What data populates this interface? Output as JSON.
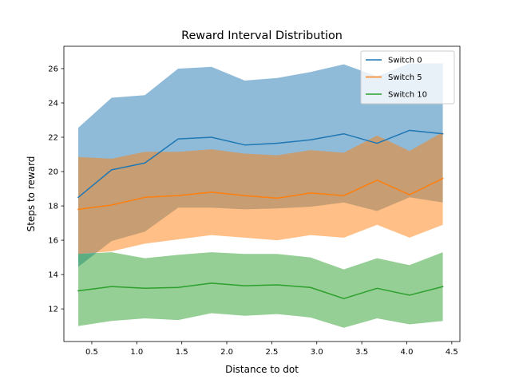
{
  "chart_data": {
    "type": "line",
    "title": "Reward Interval Distribution",
    "xlabel": "Distance to dot",
    "ylabel": "Steps to reward",
    "xlim": [
      0.19,
      4.59
    ],
    "ylim": [
      10.1,
      27.3
    ],
    "xticks": [
      0.5,
      1.0,
      1.5,
      2.0,
      2.5,
      3.0,
      3.5,
      4.0,
      4.5
    ],
    "xtick_labels": [
      "0.5",
      "1.0",
      "1.5",
      "2.0",
      "2.5",
      "3.0",
      "3.5",
      "4.0",
      "4.5"
    ],
    "yticks": [
      12,
      14,
      16,
      18,
      20,
      22,
      24,
      26
    ],
    "ytick_labels": [
      "12",
      "14",
      "16",
      "18",
      "20",
      "22",
      "24",
      "26"
    ],
    "grid": false,
    "legend_position": "top-right",
    "x": [
      0.35,
      0.72,
      1.09,
      1.46,
      1.83,
      2.2,
      2.56,
      2.93,
      3.3,
      3.67,
      4.03,
      4.4
    ],
    "series": [
      {
        "name": "Switch 0",
        "color": "#1f77b4",
        "values": [
          18.5,
          20.1,
          20.5,
          21.9,
          22.0,
          21.55,
          21.65,
          21.85,
          22.2,
          21.65,
          22.4,
          22.2
        ],
        "upper": [
          22.55,
          24.3,
          24.45,
          26.0,
          26.1,
          25.3,
          25.45,
          25.8,
          26.25,
          25.55,
          26.3,
          26.3
        ],
        "lower": [
          14.45,
          15.95,
          16.5,
          17.9,
          17.9,
          17.8,
          17.85,
          17.95,
          18.2,
          17.7,
          18.5,
          18.2
        ]
      },
      {
        "name": "Switch 5",
        "color": "#ff7f0e",
        "values": [
          17.8,
          18.05,
          18.5,
          18.6,
          18.8,
          18.6,
          18.45,
          18.75,
          18.6,
          19.5,
          18.65,
          19.6
        ],
        "upper": [
          20.85,
          20.75,
          21.15,
          21.15,
          21.3,
          21.05,
          20.95,
          21.25,
          21.1,
          22.1,
          21.2,
          22.3
        ],
        "lower": [
          15.2,
          15.35,
          15.8,
          16.05,
          16.3,
          16.15,
          16.0,
          16.3,
          16.15,
          16.9,
          16.15,
          16.9
        ]
      },
      {
        "name": "Switch 10",
        "color": "#2ca02c",
        "values": [
          13.05,
          13.3,
          13.2,
          13.25,
          13.5,
          13.35,
          13.4,
          13.25,
          12.6,
          13.2,
          12.8,
          13.3
        ],
        "upper": [
          15.2,
          15.3,
          14.95,
          15.15,
          15.3,
          15.2,
          15.2,
          15.0,
          14.3,
          14.95,
          14.55,
          15.3
        ],
        "lower": [
          11.0,
          11.3,
          11.45,
          11.35,
          11.75,
          11.6,
          11.7,
          11.5,
          10.9,
          11.45,
          11.1,
          11.3
        ]
      }
    ]
  }
}
